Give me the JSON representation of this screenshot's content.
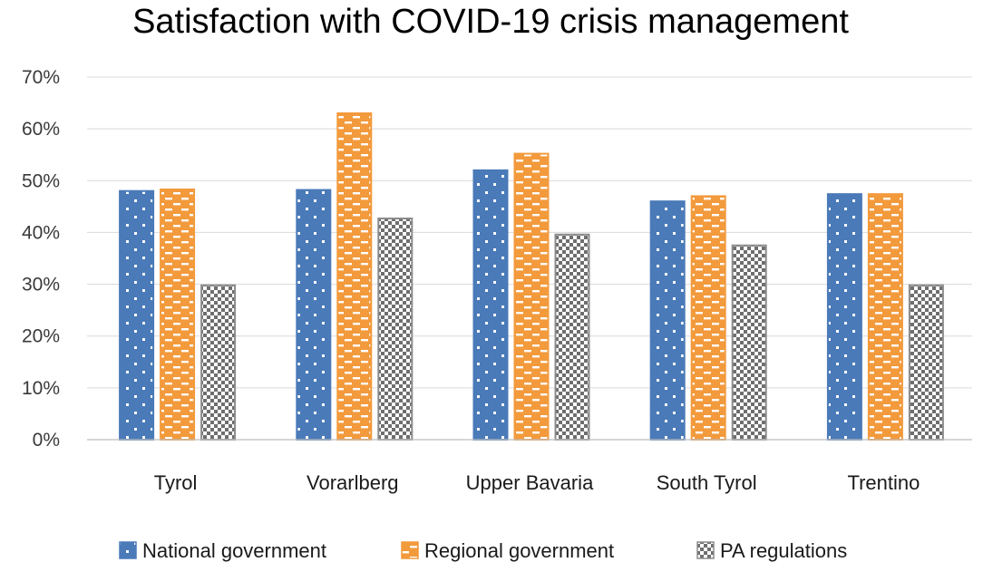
{
  "chart_data": {
    "type": "bar",
    "title": "Satisfaction with COVID-19 crisis management",
    "xlabel": "",
    "ylabel": "",
    "ylim": [
      0,
      70
    ],
    "y_ticks": [
      "0%",
      "10%",
      "20%",
      "30%",
      "40%",
      "50%",
      "60%",
      "70%"
    ],
    "y_tick_values": [
      0,
      10,
      20,
      30,
      40,
      50,
      60,
      70
    ],
    "grid": true,
    "legend_position": "bottom",
    "categories": [
      "Tyrol",
      "Vorarlberg",
      "Upper Bavaria",
      "South Tyrol",
      "Trentino"
    ],
    "series": [
      {
        "name": "National government",
        "color": "#4a7ab8",
        "pattern": "dots",
        "values": [
          48,
          48.2,
          52,
          46,
          47.4
        ]
      },
      {
        "name": "Regional government",
        "color": "#f29a3c",
        "pattern": "bricks",
        "values": [
          48.3,
          63,
          55.2,
          47,
          47.4
        ]
      },
      {
        "name": "PA regulations",
        "color": "#8c8c8c",
        "pattern": "checker",
        "values": [
          29.8,
          42.7,
          39.6,
          37.5,
          29.8
        ]
      }
    ]
  }
}
